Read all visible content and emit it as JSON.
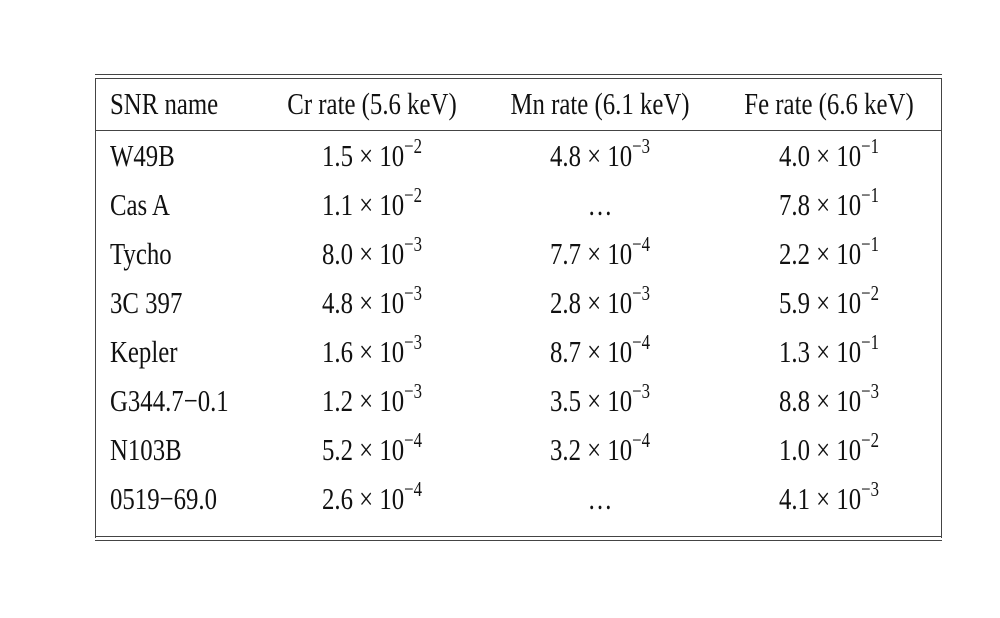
{
  "table": {
    "header": [
      "SNR name",
      "Cr rate (5.6 keV)",
      "Mn rate (6.1 keV)",
      "Fe rate (6.6 keV)"
    ],
    "rows": [
      [
        "W49B",
        {
          "base": "1.5 × 10",
          "exp": "−2"
        },
        {
          "base": "4.8 × 10",
          "exp": "−3"
        },
        {
          "base": "4.0 × 10",
          "exp": "−1"
        }
      ],
      [
        "Cas A",
        {
          "base": "1.1 × 10",
          "exp": "−2"
        },
        "…",
        {
          "base": "7.8 × 10",
          "exp": "−1"
        }
      ],
      [
        "Tycho",
        {
          "base": "8.0 × 10",
          "exp": "−3"
        },
        {
          "base": "7.7 × 10",
          "exp": "−4"
        },
        {
          "base": "2.2 × 10",
          "exp": "−1"
        }
      ],
      [
        "3C 397",
        {
          "base": "4.8 × 10",
          "exp": "−3"
        },
        {
          "base": "2.8 × 10",
          "exp": "−3"
        },
        {
          "base": "5.9 × 10",
          "exp": "−2"
        }
      ],
      [
        "Kepler",
        {
          "base": "1.6 × 10",
          "exp": "−3"
        },
        {
          "base": "8.7 × 10",
          "exp": "−4"
        },
        {
          "base": "1.3 × 10",
          "exp": "−1"
        }
      ],
      [
        "G344.7−0.1",
        {
          "base": "1.2 × 10",
          "exp": "−3"
        },
        {
          "base": "3.5 × 10",
          "exp": "−3"
        },
        {
          "base": "8.8 × 10",
          "exp": "−3"
        }
      ],
      [
        "N103B",
        {
          "base": "5.2 × 10",
          "exp": "−4"
        },
        {
          "base": "3.2 × 10",
          "exp": "−4"
        },
        {
          "base": "1.0 × 10",
          "exp": "−2"
        }
      ],
      [
        "0519−69.0",
        {
          "base": "2.6 × 10",
          "exp": "−4"
        },
        "…",
        {
          "base": "4.1 × 10",
          "exp": "−3"
        }
      ]
    ]
  }
}
